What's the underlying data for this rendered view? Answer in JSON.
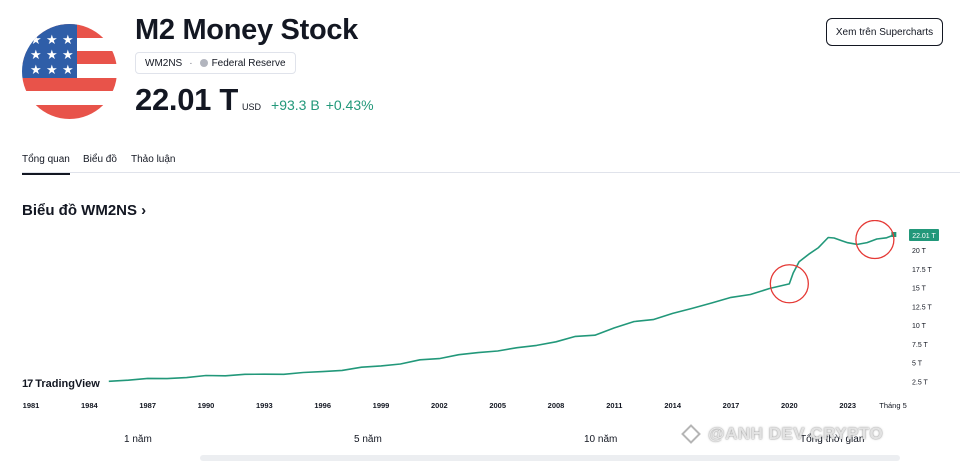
{
  "header": {
    "title": "M2 Money Stock",
    "symbol": "WM2NS",
    "source": "Federal Reserve",
    "price": "22.01 T",
    "currency": "USD",
    "change_abs": "+93.3 B",
    "change_pct": "+0.43%",
    "supercharts_label": "Xem trên Supercharts"
  },
  "tabs": [
    {
      "label": "Tổng quan",
      "active": true
    },
    {
      "label": "Biểu đồ",
      "active": false
    },
    {
      "label": "Thảo luận",
      "active": false
    }
  ],
  "section_title": "Biểu đồ WM2NS ›",
  "branding": {
    "logo_text": "TradingView"
  },
  "ranges": [
    "1 năm",
    "5 năm",
    "10 năm",
    "Tổng thời gian"
  ],
  "watermark": "@ANH DEV CRYPTO",
  "colors": {
    "line": "#22987a",
    "label_bg": "#22987a",
    "highlight": "#e53935"
  },
  "chart_data": {
    "type": "line",
    "series": [
      {
        "x": [
          1985.0,
          1986.0,
          1987.0,
          1988.0,
          1989.0,
          1990.0,
          1991.0,
          1992.0,
          1993.0,
          1994.0,
          1995.0,
          1996.0,
          1997.0,
          1998.0,
          1999.0,
          2000.0,
          2001.0,
          2002.0,
          2003.0,
          2004.0,
          2005.0,
          2006.0,
          2007.0,
          2008.0,
          2009.0,
          2010.0,
          2011.0,
          2012.0,
          2013.0,
          2014.0,
          2015.0,
          2016.0,
          2017.0,
          2018.0,
          2019.0,
          2020.0,
          2020.2,
          2020.5,
          2021.0,
          2021.5,
          2022.0,
          2022.3,
          2022.7,
          2023.0,
          2023.5,
          2024.0,
          2024.5,
          2025.0,
          2025.4
        ],
        "y": [
          2.5,
          2.7,
          2.8,
          2.9,
          3.0,
          3.2,
          3.3,
          3.4,
          3.4,
          3.5,
          3.6,
          3.8,
          4.0,
          4.3,
          4.6,
          4.8,
          5.3,
          5.6,
          6.0,
          6.3,
          6.6,
          6.9,
          7.3,
          7.8,
          8.4,
          8.7,
          9.6,
          10.4,
          10.8,
          11.5,
          12.2,
          13.0,
          13.6,
          14.1,
          14.9,
          15.4,
          17.0,
          18.4,
          19.4,
          20.4,
          21.6,
          21.6,
          21.3,
          20.9,
          20.8,
          21.0,
          21.4,
          21.7,
          22.0
        ]
      }
    ],
    "x_ticks": [
      "1981",
      "1984",
      "1987",
      "1990",
      "1993",
      "1996",
      "1999",
      "2002",
      "2005",
      "2008",
      "2011",
      "2014",
      "2017",
      "2020",
      "2023",
      "Tháng 5"
    ],
    "y_ticks": [
      "2.5 T",
      "5 T",
      "7.5 T",
      "10 T",
      "12.5 T",
      "15 T",
      "17.5 T",
      "20 T"
    ],
    "last_value_label": "22.01 T",
    "y_unit": "T",
    "xlim": [
      1981,
      2026
    ],
    "ylim": [
      0,
      24
    ],
    "highlights": [
      {
        "x": 2020.0,
        "y": 15.5
      },
      {
        "x": 2024.4,
        "y": 21.4
      }
    ]
  }
}
